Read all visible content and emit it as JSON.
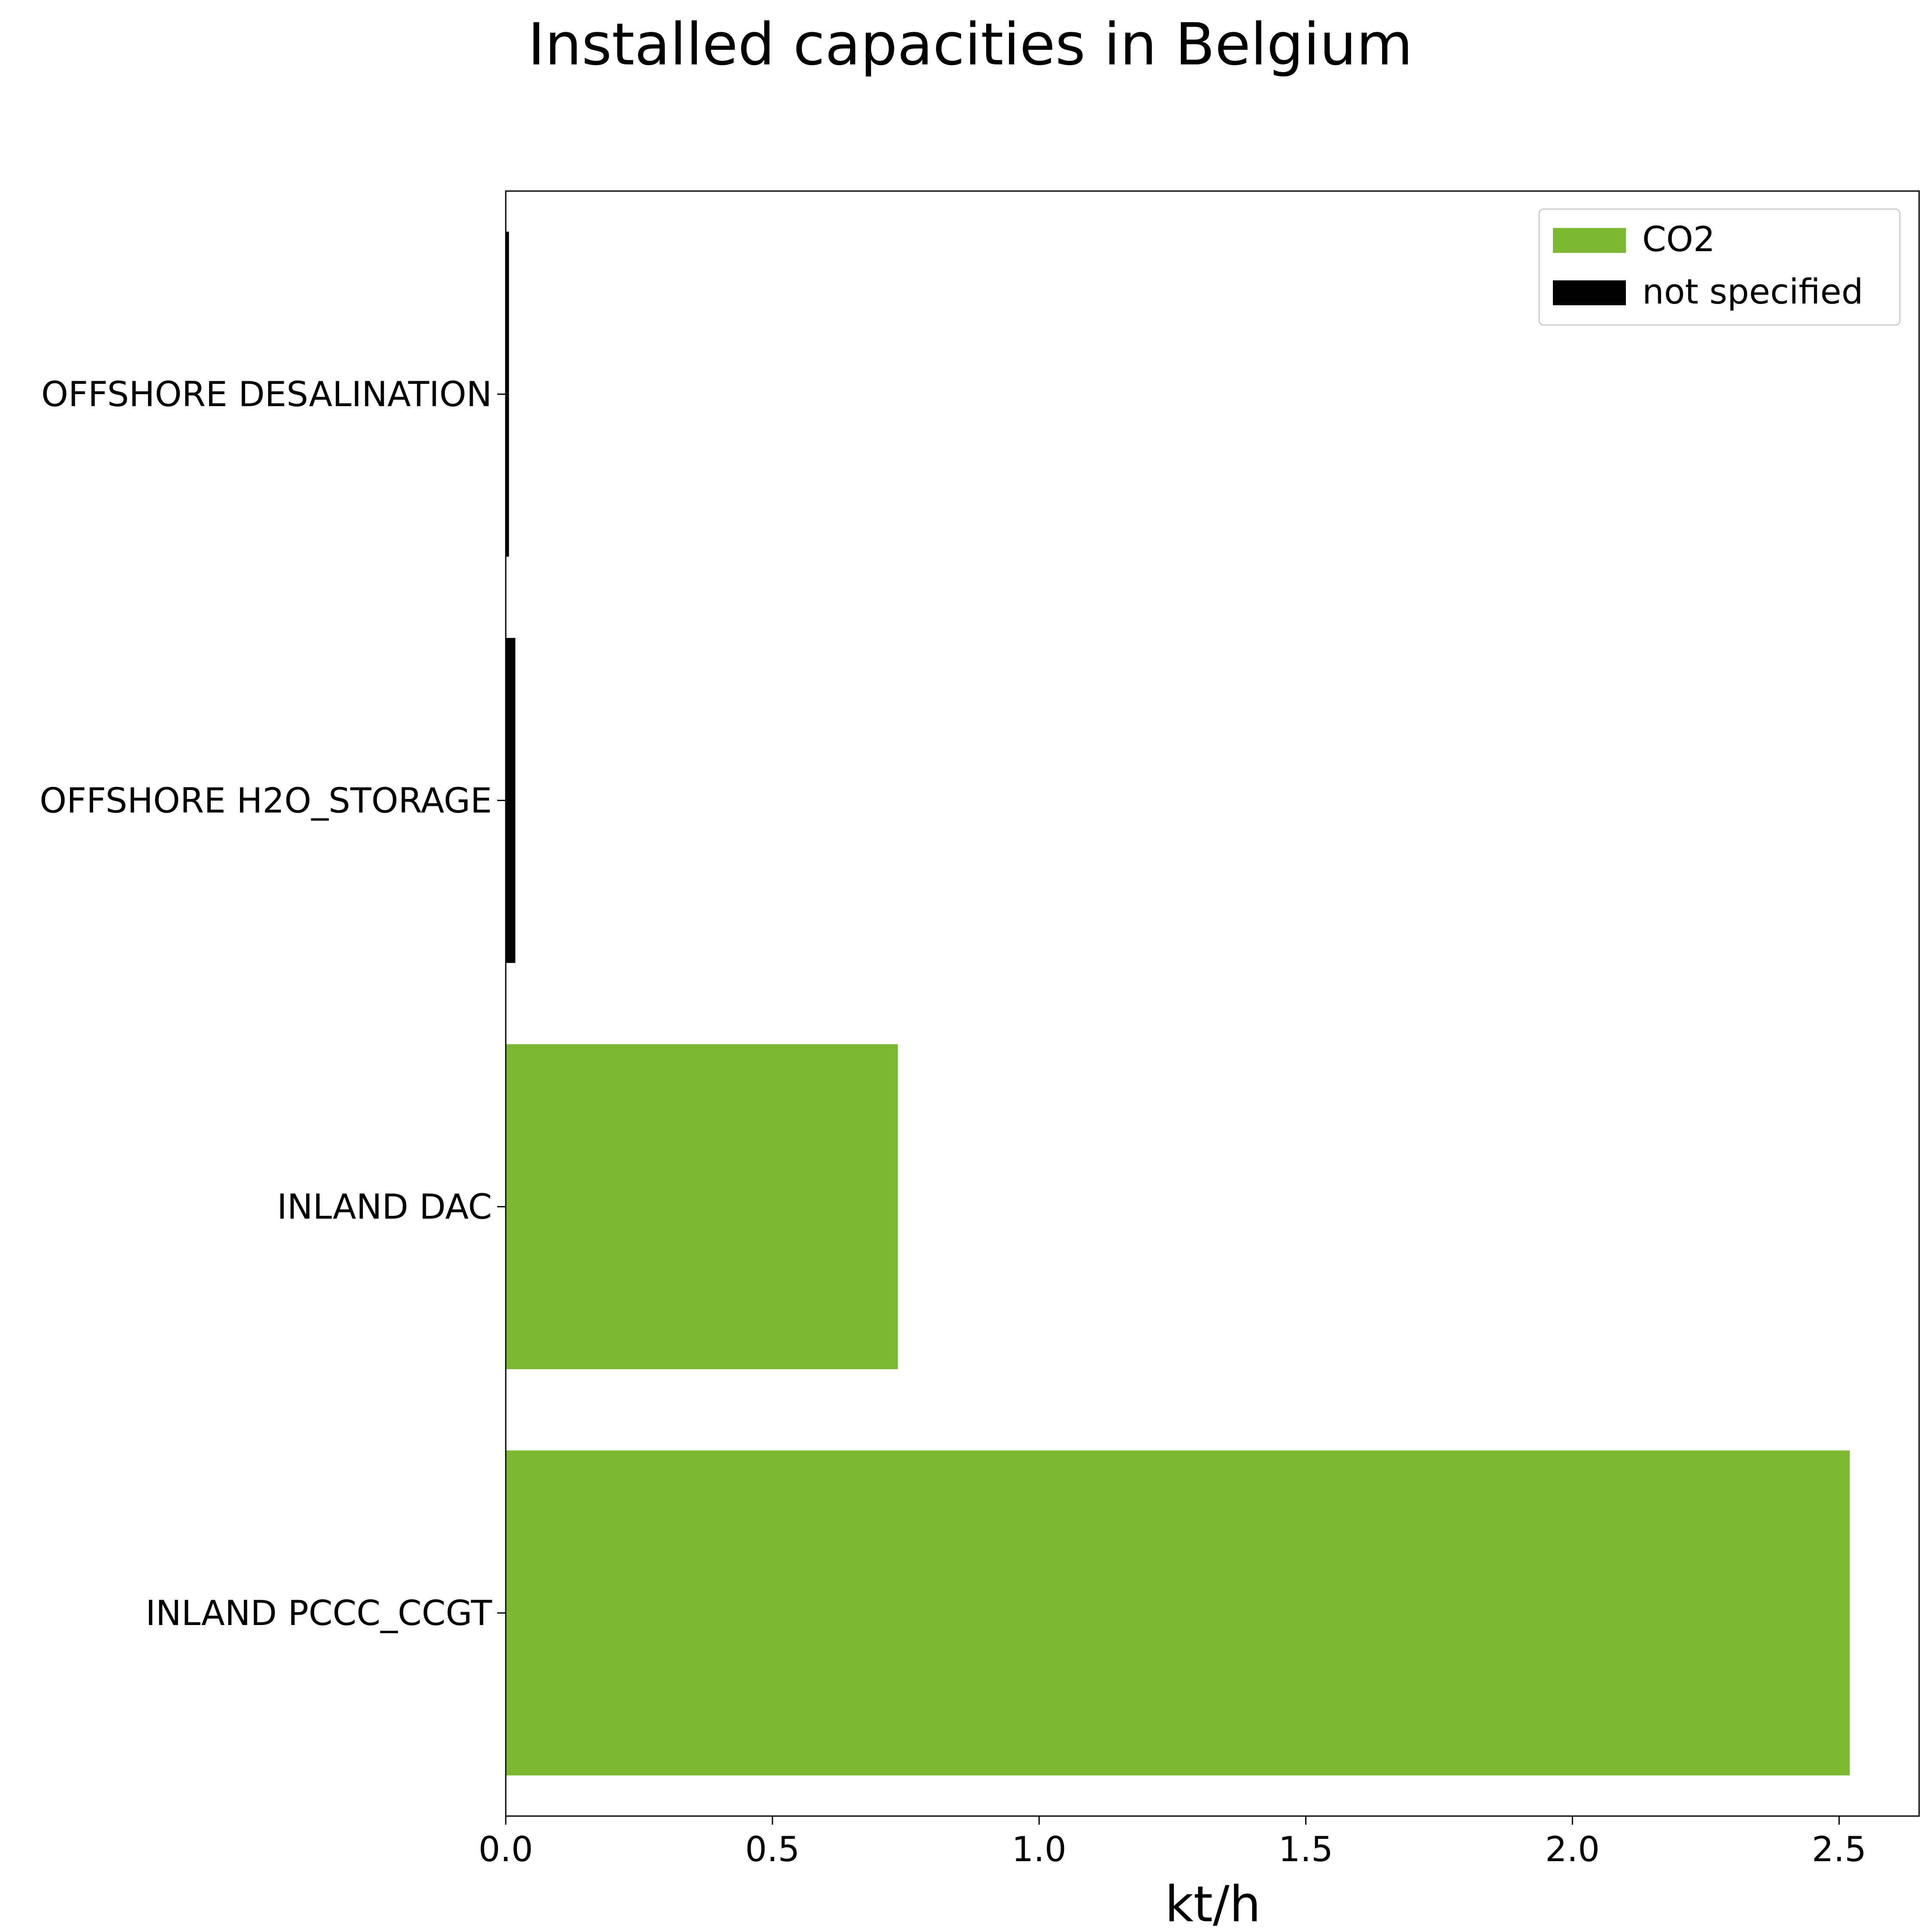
{
  "chart_data": {
    "type": "bar",
    "orientation": "horizontal",
    "title": "Installed capacities in Belgium",
    "xlabel": "kt/h",
    "ylabel": "",
    "xlim": [
      0,
      2.65
    ],
    "x_ticks": [
      "0.0",
      "0.5",
      "1.0",
      "1.5",
      "2.0",
      "2.5"
    ],
    "categories": [
      "OFFSHORE DESALINATION",
      "OFFSHORE H2O_STORAGE",
      "INLAND DAC",
      "INLAND PCCC_CCGT"
    ],
    "series": [
      {
        "name": "CO2",
        "color": "#7cb933",
        "values": [
          null,
          null,
          0.735,
          2.52
        ]
      },
      {
        "name": "not specified",
        "color": "#000000",
        "values": [
          0.006,
          0.018,
          null,
          null
        ]
      }
    ],
    "legend_position": "top-right",
    "grid": false
  }
}
